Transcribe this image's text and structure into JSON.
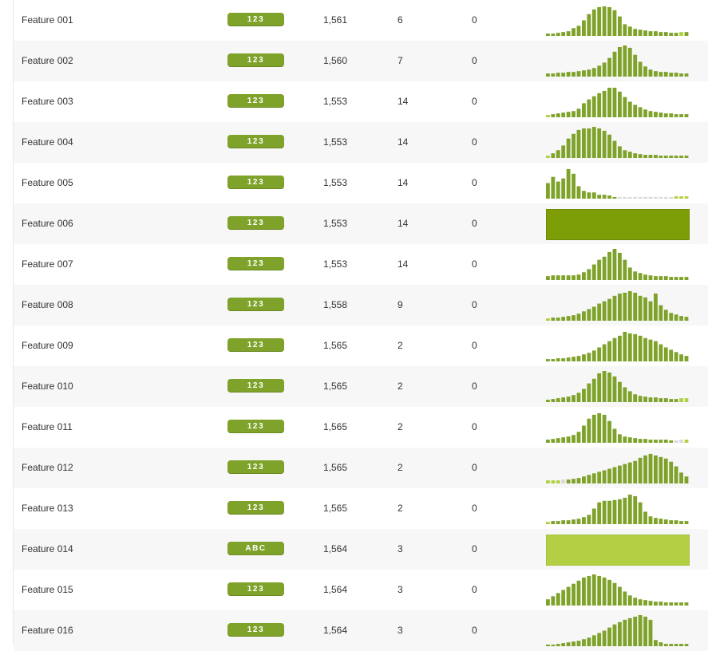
{
  "colors": {
    "bar": "#7ea22a",
    "bar_dark": "#7e9e07",
    "bar_light": "#b3d045",
    "bar_empty": "#d9d9d9",
    "row_alt": "#f7f7f7"
  },
  "rows": [
    {
      "name": "Feature 001",
      "type": "123",
      "valid": "1,561",
      "missing": "6",
      "mismatch": "0",
      "hist": {
        "kind": "bars",
        "values": [
          3,
          3,
          4,
          5,
          6,
          10,
          13,
          20,
          28,
          34,
          37,
          38,
          37,
          33,
          25,
          15,
          12,
          9,
          8,
          7,
          6,
          6,
          5,
          5,
          4,
          4,
          5,
          5
        ],
        "light": [
          26
        ]
      }
    },
    {
      "name": "Feature 002",
      "type": "123",
      "valid": "1,560",
      "missing": "7",
      "mismatch": "0",
      "hist": {
        "kind": "bars",
        "values": [
          4,
          4,
          5,
          5,
          6,
          6,
          7,
          8,
          9,
          11,
          14,
          18,
          24,
          32,
          38,
          40,
          37,
          28,
          19,
          13,
          9,
          7,
          6,
          6,
          5,
          5,
          4,
          4
        ],
        "light": []
      }
    },
    {
      "name": "Feature 003",
      "type": "123",
      "valid": "1,553",
      "missing": "14",
      "mismatch": "0",
      "hist": {
        "kind": "bars",
        "values": [
          3,
          4,
          5,
          6,
          7,
          8,
          11,
          18,
          23,
          27,
          31,
          34,
          38,
          38,
          33,
          26,
          20,
          16,
          13,
          10,
          8,
          7,
          6,
          5,
          5,
          4,
          4,
          4
        ],
        "light": [
          0
        ]
      }
    },
    {
      "name": "Feature 004",
      "type": "123",
      "valid": "1,553",
      "missing": "14",
      "mismatch": "0",
      "hist": {
        "kind": "bars",
        "values": [
          3,
          6,
          10,
          16,
          25,
          31,
          36,
          38,
          38,
          40,
          38,
          35,
          30,
          22,
          15,
          10,
          8,
          6,
          5,
          4,
          4,
          4,
          3,
          3,
          3,
          3,
          3,
          3
        ],
        "light": [
          0
        ]
      }
    },
    {
      "name": "Feature 005",
      "type": "123",
      "valid": "1,553",
      "missing": "14",
      "mismatch": "0",
      "hist": {
        "kind": "bars",
        "values": [
          20,
          28,
          22,
          26,
          38,
          32,
          16,
          10,
          8,
          8,
          5,
          5,
          4,
          2,
          2,
          2,
          2,
          2,
          2,
          2,
          2,
          2,
          2,
          2,
          2,
          3,
          3,
          3
        ],
        "light": [
          25,
          26,
          27
        ],
        "empty": [
          14,
          15,
          16,
          17,
          18,
          19,
          20,
          21,
          22,
          23,
          24
        ]
      }
    },
    {
      "name": "Feature 006",
      "type": "123",
      "valid": "1,553",
      "missing": "14",
      "mismatch": "0",
      "hist": {
        "kind": "block",
        "tone": "dark"
      }
    },
    {
      "name": "Feature 007",
      "type": "123",
      "valid": "1,553",
      "missing": "14",
      "mismatch": "0",
      "hist": {
        "kind": "bars",
        "values": [
          5,
          6,
          6,
          6,
          6,
          6,
          7,
          10,
          14,
          20,
          26,
          30,
          36,
          40,
          35,
          26,
          16,
          11,
          9,
          7,
          6,
          5,
          5,
          5,
          4,
          4,
          4,
          4
        ],
        "light": []
      }
    },
    {
      "name": "Feature 008",
      "type": "123",
      "valid": "1,558",
      "missing": "9",
      "mismatch": "0",
      "hist": {
        "kind": "bars",
        "values": [
          3,
          4,
          4,
          5,
          6,
          7,
          9,
          12,
          15,
          18,
          22,
          25,
          28,
          32,
          35,
          36,
          38,
          36,
          32,
          30,
          25,
          35,
          20,
          14,
          10,
          8,
          6,
          5
        ],
        "light": [
          0
        ]
      }
    },
    {
      "name": "Feature 009",
      "type": "123",
      "valid": "1,565",
      "missing": "2",
      "mismatch": "0",
      "hist": {
        "kind": "bars",
        "values": [
          3,
          3,
          4,
          4,
          5,
          6,
          7,
          9,
          11,
          14,
          18,
          22,
          26,
          30,
          33,
          38,
          36,
          35,
          33,
          30,
          28,
          26,
          22,
          18,
          15,
          12,
          9,
          7
        ],
        "light": []
      }
    },
    {
      "name": "Feature 010",
      "type": "123",
      "valid": "1,565",
      "missing": "2",
      "mismatch": "0",
      "hist": {
        "kind": "bars",
        "values": [
          3,
          4,
          5,
          6,
          7,
          9,
          12,
          17,
          24,
          30,
          37,
          40,
          38,
          33,
          26,
          19,
          14,
          10,
          8,
          7,
          6,
          6,
          5,
          5,
          4,
          4,
          5,
          5
        ],
        "light": [
          26,
          27
        ]
      }
    },
    {
      "name": "Feature 011",
      "type": "123",
      "valid": "1,565",
      "missing": "2",
      "mismatch": "0",
      "hist": {
        "kind": "bars",
        "values": [
          4,
          5,
          6,
          7,
          8,
          10,
          14,
          22,
          31,
          36,
          38,
          36,
          28,
          18,
          11,
          8,
          7,
          6,
          5,
          5,
          4,
          4,
          4,
          4,
          3,
          3,
          4,
          4
        ],
        "light": [
          27
        ],
        "empty": [
          25,
          26
        ]
      }
    },
    {
      "name": "Feature 012",
      "type": "123",
      "valid": "1,565",
      "missing": "2",
      "mismatch": "0",
      "hist": {
        "kind": "bars",
        "values": [
          4,
          4,
          4,
          5,
          5,
          6,
          7,
          9,
          11,
          13,
          15,
          17,
          19,
          21,
          23,
          25,
          27,
          29,
          33,
          36,
          38,
          36,
          34,
          32,
          28,
          22,
          14,
          9
        ],
        "light": [
          0,
          1,
          2
        ],
        "empty": [
          3
        ]
      }
    },
    {
      "name": "Feature 013",
      "type": "123",
      "valid": "1,565",
      "missing": "2",
      "mismatch": "0",
      "hist": {
        "kind": "bars",
        "values": [
          3,
          4,
          4,
          5,
          5,
          6,
          7,
          9,
          12,
          20,
          28,
          30,
          30,
          31,
          32,
          34,
          38,
          36,
          28,
          16,
          10,
          8,
          7,
          6,
          5,
          5,
          4,
          4
        ],
        "light": [
          0
        ]
      }
    },
    {
      "name": "Feature 014",
      "type": "ABC",
      "valid": "1,564",
      "missing": "3",
      "mismatch": "0",
      "hist": {
        "kind": "block",
        "tone": "light"
      }
    },
    {
      "name": "Feature 015",
      "type": "123",
      "valid": "1,564",
      "missing": "3",
      "mismatch": "0",
      "hist": {
        "kind": "bars",
        "values": [
          8,
          12,
          16,
          20,
          24,
          28,
          32,
          36,
          38,
          40,
          38,
          36,
          33,
          29,
          24,
          18,
          13,
          10,
          8,
          7,
          6,
          5,
          5,
          4,
          4,
          4,
          4,
          4
        ],
        "light": []
      }
    },
    {
      "name": "Feature 016",
      "type": "123",
      "valid": "1,564",
      "missing": "3",
      "mismatch": "0",
      "hist": {
        "kind": "bars",
        "values": [
          2,
          2,
          3,
          4,
          5,
          6,
          7,
          9,
          11,
          14,
          17,
          20,
          24,
          28,
          31,
          34,
          36,
          38,
          40,
          38,
          34,
          8,
          5,
          3,
          3,
          3,
          3,
          3
        ],
        "light": []
      }
    }
  ]
}
